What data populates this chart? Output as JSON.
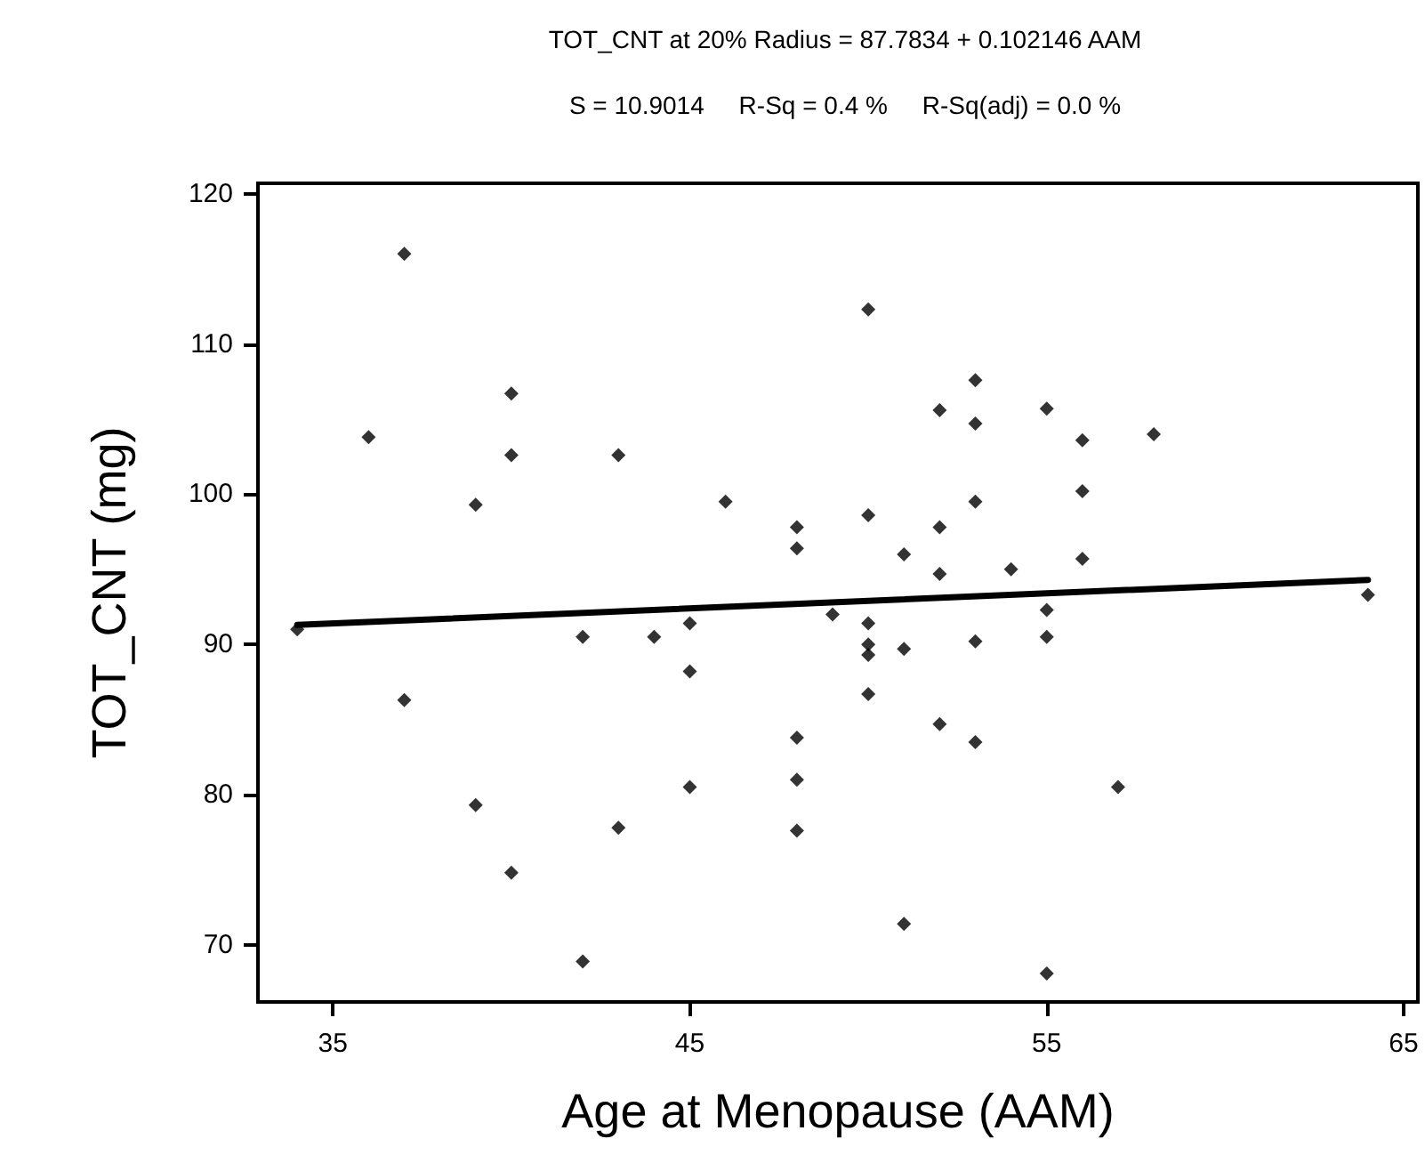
{
  "chart_data": {
    "type": "scatter",
    "title": "TOT_CNT at 20% Radius = 87.7834 + 0.102146 AAM",
    "subtitle": "S = 10.9014     R-Sq = 0.4 %     R-Sq(adj) = 0.0 %",
    "xlabel": "Age at Menopause (AAM)",
    "ylabel": "TOT_CNT (mg)",
    "xlim": [
      32.9,
      65.4
    ],
    "ylim": [
      66.2,
      120.7
    ],
    "xticks": [
      35,
      45,
      55,
      65
    ],
    "yticks": [
      70,
      80,
      90,
      100,
      110,
      120
    ],
    "grid": false,
    "marker": "diamond",
    "series": [
      {
        "color": "#000000",
        "x": [
          34,
          36,
          37,
          37,
          39,
          39,
          40,
          40,
          40,
          42,
          42,
          43,
          43,
          44,
          45,
          45,
          45,
          46,
          48,
          48,
          48,
          48,
          48,
          49,
          50,
          50,
          50,
          50,
          50,
          50,
          51,
          51,
          51,
          52,
          52,
          52,
          52,
          53,
          53,
          53,
          53,
          53,
          54,
          55,
          55,
          55,
          55,
          56,
          56,
          56,
          57,
          58,
          64
        ],
        "values": [
          91,
          103.8,
          116,
          86.3,
          99.3,
          79.3,
          106.7,
          102.6,
          74.8,
          90.5,
          68.9,
          102.6,
          77.8,
          90.5,
          91.4,
          88.2,
          80.5,
          99.5,
          97.8,
          96.4,
          83.8,
          81,
          77.6,
          92,
          112.3,
          98.6,
          91.4,
          90,
          89.3,
          86.7,
          96,
          89.7,
          71.4,
          105.6,
          97.8,
          94.7,
          84.7,
          107.6,
          104.7,
          99.5,
          90.2,
          83.5,
          95,
          105.7,
          92.3,
          90.5,
          68.1,
          103.6,
          100.2,
          95.7,
          80.5,
          104,
          93.3
        ]
      },
      {
        "type": "line",
        "color": "#000000",
        "line_style": "solid",
        "marker": "none",
        "x": [
          34,
          64
        ],
        "values": [
          91.3,
          94.3
        ]
      }
    ]
  }
}
